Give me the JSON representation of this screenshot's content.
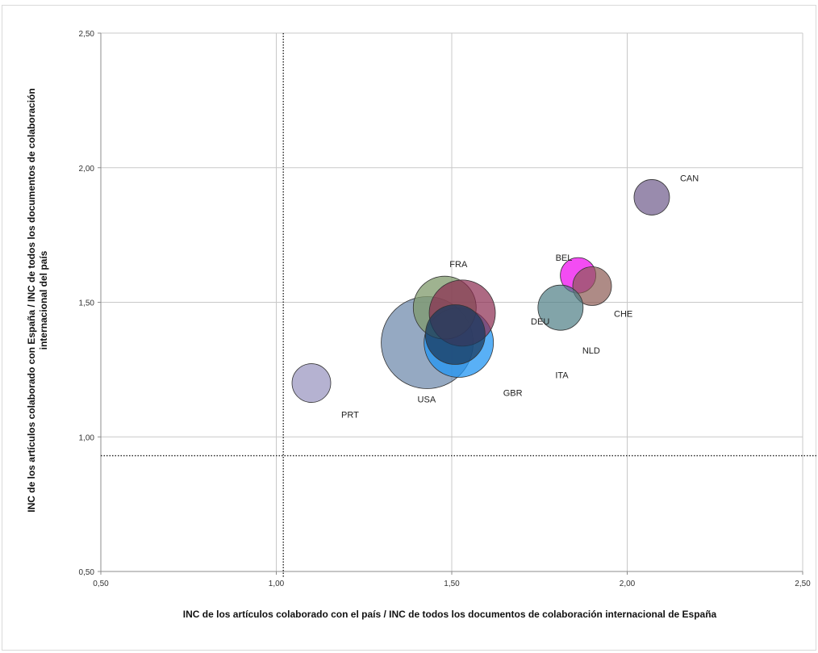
{
  "chart_data": {
    "type": "bubble",
    "xlabel": "INC de los artículos colaborado con el país / INC de todos los documentos de colaboración internacional de España",
    "ylabel": "INC de los artículos colaborado con España / INC de todos los documentos de colaboración internacional del país",
    "xlim": [
      0.5,
      2.5
    ],
    "ylim": [
      0.5,
      2.5
    ],
    "x_ticks": [
      "0,50",
      "1,00",
      "1,50",
      "2,00",
      "2,50"
    ],
    "y_ticks": [
      "0,50",
      "1,00",
      "1,50",
      "2,00",
      "2,50"
    ],
    "grid": true,
    "reference_lines": {
      "x": 1.02,
      "y": 0.93
    },
    "points": [
      {
        "label": "USA",
        "x": 1.43,
        "y": 1.35,
        "size": 57,
        "color": "#4f6f9a",
        "opacity": 0.6
      },
      {
        "label": "GBR",
        "x": 1.52,
        "y": 1.35,
        "size": 43,
        "color": "#2196f3",
        "opacity": 0.75
      },
      {
        "label": "FRA",
        "x": 1.48,
        "y": 1.48,
        "size": 39,
        "color": "#7f9a6b",
        "opacity": 0.75
      },
      {
        "label": "DEU",
        "x": 1.53,
        "y": 1.46,
        "size": 41,
        "color": "#8a2a4e",
        "opacity": 0.7
      },
      {
        "label": "ITA",
        "x": 1.51,
        "y": 1.38,
        "size": 37,
        "color": "#1a3a5e",
        "opacity": 0.75
      },
      {
        "label": "PRT",
        "x": 1.1,
        "y": 1.2,
        "size": 24,
        "color": "#8d89b8",
        "opacity": 0.65
      },
      {
        "label": "NLD",
        "x": 1.81,
        "y": 1.48,
        "size": 28,
        "color": "#4d7e84",
        "opacity": 0.7
      },
      {
        "label": "CHE",
        "x": 1.9,
        "y": 1.56,
        "size": 24,
        "color": "#8c5a52",
        "opacity": 0.7
      },
      {
        "label": "BEL",
        "x": 1.86,
        "y": 1.6,
        "size": 22,
        "color": "#ee00ee",
        "opacity": 0.7
      },
      {
        "label": "CAN",
        "x": 2.07,
        "y": 1.89,
        "size": 22,
        "color": "#6e5a8a",
        "opacity": 0.7
      }
    ]
  }
}
